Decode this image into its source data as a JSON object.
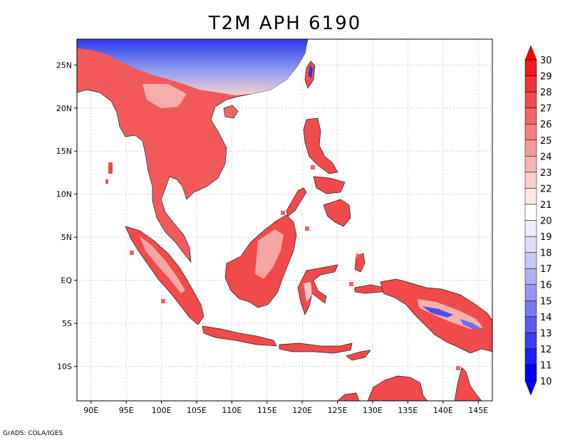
{
  "title": "T2M APH 6190",
  "credit": "GrADS: COLA/IGES",
  "map": {
    "lon_range": [
      88,
      147
    ],
    "lat_range": [
      -14,
      28
    ],
    "x_ticks": [
      {
        "lon": 90,
        "label": "90E"
      },
      {
        "lon": 95,
        "label": "95E"
      },
      {
        "lon": 100,
        "label": "100E"
      },
      {
        "lon": 105,
        "label": "105E"
      },
      {
        "lon": 110,
        "label": "110E"
      },
      {
        "lon": 115,
        "label": "115E"
      },
      {
        "lon": 120,
        "label": "120E"
      },
      {
        "lon": 125,
        "label": "125E"
      },
      {
        "lon": 130,
        "label": "130E"
      },
      {
        "lon": 135,
        "label": "135E"
      },
      {
        "lon": 140,
        "label": "140E"
      },
      {
        "lon": 145,
        "label": "145E"
      }
    ],
    "y_ticks": [
      {
        "lat": 25,
        "label": "25N"
      },
      {
        "lat": 20,
        "label": "20N"
      },
      {
        "lat": 15,
        "label": "15N"
      },
      {
        "lat": 10,
        "label": "10N"
      },
      {
        "lat": 5,
        "label": "5N"
      },
      {
        "lat": 0,
        "label": "EQ"
      },
      {
        "lat": -5,
        "label": "5S"
      },
      {
        "lat": -10,
        "label": "10S"
      }
    ],
    "grid": "dotted"
  },
  "colorbar": {
    "levels": [
      "10",
      "11",
      "12",
      "13",
      "14",
      "15",
      "16",
      "17",
      "18",
      "19",
      "20",
      "21",
      "22",
      "23",
      "24",
      "25",
      "26",
      "27",
      "28",
      "29",
      "30"
    ],
    "colors": [
      "#0000ff",
      "#1e1ef5",
      "#3c3cf2",
      "#5a5af0",
      "#7878ee",
      "#9696f0",
      "#afaff2",
      "#c8c8f5",
      "#dcdcf8",
      "#ececfb",
      "#ffffff",
      "#fde6e6",
      "#fbcccc",
      "#f9b2b2",
      "#f79898",
      "#f57e7e",
      "#f36464",
      "#f14a4a",
      "#ef3232",
      "#ef1a1a"
    ],
    "low_arrow_color": "#0000ff",
    "high_arrow_color": "#ff0000"
  }
}
